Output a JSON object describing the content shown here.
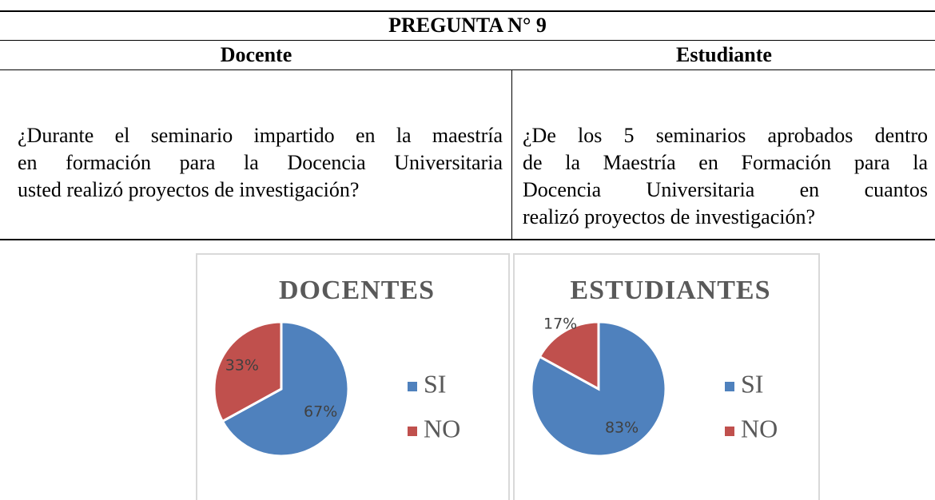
{
  "table": {
    "title": "PREGUNTA N° 9",
    "columns": [
      "Docente",
      "Estudiante"
    ],
    "questions": [
      [
        "¿Durante el seminario impartido en la maestría",
        "en formación para la Docencia Universitaria",
        "usted realizó proyectos de investigación?"
      ],
      [
        "¿De los 5 seminarios aprobados dentro",
        "de la Maestría en Formación para la",
        "Docencia Universitaria en cuantos",
        "realizó proyectos de investigación?"
      ]
    ]
  },
  "chart_data": [
    {
      "type": "pie",
      "title": "DOCENTES",
      "categories": [
        "SI",
        "NO"
      ],
      "values": [
        67,
        33
      ],
      "value_labels": [
        "67%",
        "33%"
      ],
      "colors": [
        "#4f81bd",
        "#c0504d"
      ]
    },
    {
      "type": "pie",
      "title": "ESTUDIANTES",
      "categories": [
        "SI",
        "NO"
      ],
      "values": [
        83,
        17
      ],
      "value_labels": [
        "83%",
        "17%"
      ],
      "colors": [
        "#4f81bd",
        "#c0504d"
      ]
    }
  ]
}
